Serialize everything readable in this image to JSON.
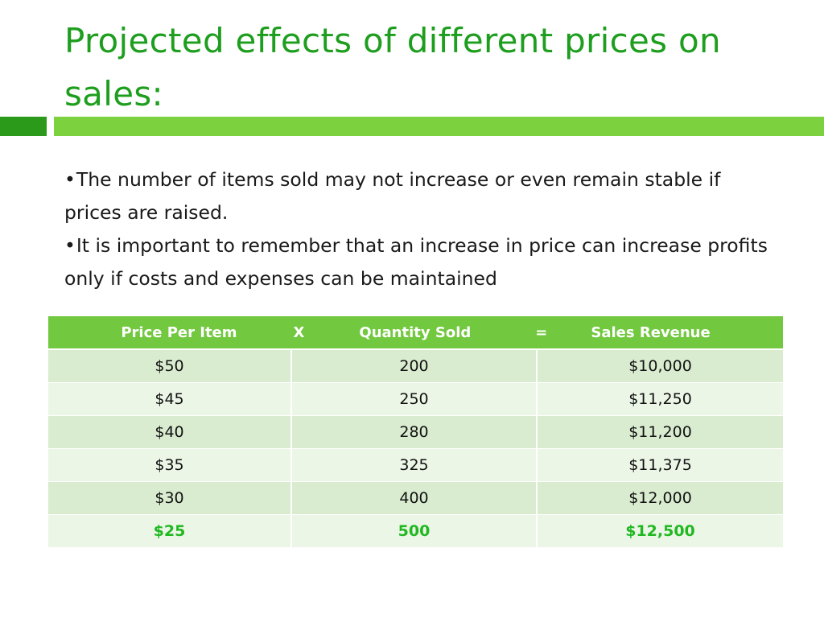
{
  "slide": {
    "title": "Projected effects of different prices on sales:",
    "accent_dark": "#2b9a1a",
    "accent_light": "#7cd13e",
    "bullet_symbol": "•",
    "bullets": [
      "The number of items sold may not increase or even remain stable if prices are raised.",
      "It is important to remember that an increase in price can increase profits only if costs and expenses can be maintained"
    ]
  },
  "table": {
    "header": {
      "col1": "Price Per Item",
      "op1": "X",
      "col2": "Quantity Sold",
      "op2": "=",
      "col3": "Sales Revenue"
    },
    "header_color": "#72c83e",
    "highlight_color": "#22b822",
    "rows": [
      {
        "price": "$50",
        "quantity": "200",
        "revenue": "$10,000",
        "highlight": false
      },
      {
        "price": "$45",
        "quantity": "250",
        "revenue": "$11,250",
        "highlight": false
      },
      {
        "price": "$40",
        "quantity": "280",
        "revenue": "$11,200",
        "highlight": false
      },
      {
        "price": "$35",
        "quantity": "325",
        "revenue": "$11,375",
        "highlight": false
      },
      {
        "price": "$30",
        "quantity": "400",
        "revenue": "$12,000",
        "highlight": false
      },
      {
        "price": "$25",
        "quantity": "500",
        "revenue": "$12,500",
        "highlight": true
      }
    ]
  }
}
